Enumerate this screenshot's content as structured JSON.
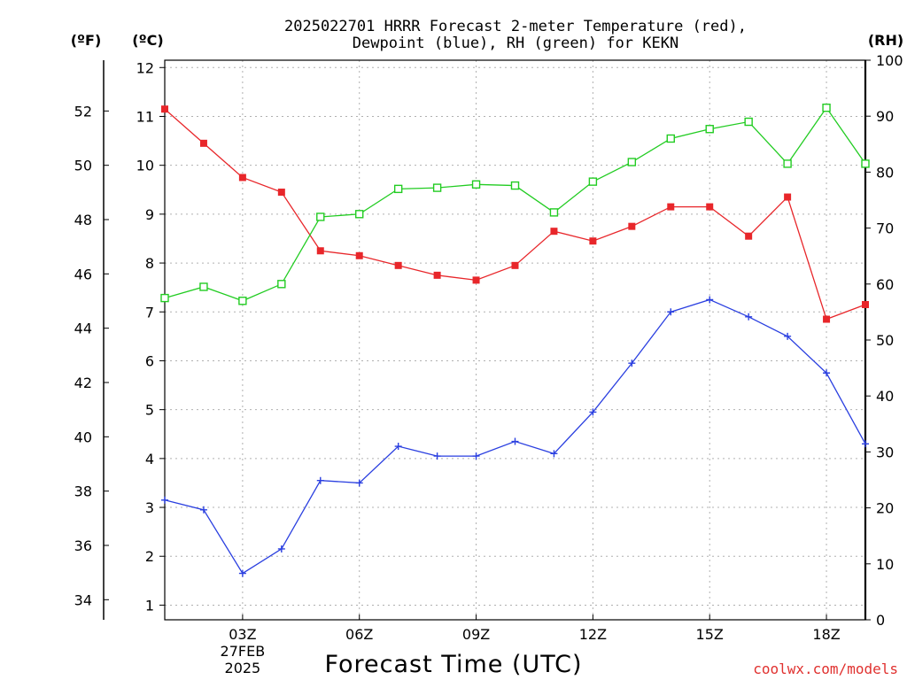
{
  "title": {
    "line1": "2025022701 HRRR Forecast 2-meter Temperature (red),",
    "line2": "Dewpoint (blue), RH (green) for KEKN"
  },
  "units": {
    "fahrenheit": "(ºF)",
    "celsius": "(ºC)",
    "rh": "(RH)"
  },
  "credit": "coolwx.com/models",
  "colors": {
    "temperature": "#e8262a",
    "dewpoint": "#2a3fe0",
    "rh": "#22cc22",
    "credit": "#e0312f",
    "grid": "#b0b0b0"
  },
  "chart_data": {
    "type": "line",
    "xlabel": "Forecast Time (UTC)",
    "x": [
      1,
      2,
      3,
      4,
      5,
      6,
      7,
      8,
      9,
      10,
      11,
      12,
      13,
      14,
      15,
      16,
      17,
      18,
      19
    ],
    "xlim": [
      1,
      19
    ],
    "x_ticks": [
      {
        "x": 3,
        "label": "03Z",
        "sub": [
          "27FEB",
          "2025"
        ]
      },
      {
        "x": 6,
        "label": "06Z"
      },
      {
        "x": 9,
        "label": "09Z"
      },
      {
        "x": 12,
        "label": "12Z"
      },
      {
        "x": 15,
        "label": "15Z"
      },
      {
        "x": 18,
        "label": "18Z"
      }
    ],
    "y_celsius": {
      "lim": [
        0.7,
        12.15
      ],
      "ticks": [
        1,
        2,
        3,
        4,
        5,
        6,
        7,
        8,
        9,
        10,
        11,
        12
      ]
    },
    "y_fahrenheit": {
      "ticks": [
        34,
        36,
        38,
        40,
        42,
        44,
        46,
        48,
        50,
        52
      ]
    },
    "y_rh": {
      "lim": [
        0,
        100
      ],
      "ticks": [
        0,
        10,
        20,
        30,
        40,
        50,
        60,
        70,
        80,
        90,
        100
      ]
    },
    "grid": true,
    "series": [
      {
        "name": "Temperature",
        "axis": "celsius",
        "color_key": "temperature",
        "marker": "filled-square",
        "values": [
          11.15,
          10.45,
          9.75,
          9.45,
          8.25,
          8.15,
          7.95,
          7.75,
          7.65,
          7.95,
          8.65,
          8.45,
          8.75,
          9.15,
          9.15,
          8.55,
          9.35,
          6.85,
          7.15
        ]
      },
      {
        "name": "Dewpoint",
        "axis": "celsius",
        "color_key": "dewpoint",
        "marker": "plus",
        "values": [
          3.15,
          2.95,
          1.65,
          2.15,
          3.55,
          3.5,
          4.25,
          4.05,
          4.05,
          4.35,
          4.1,
          4.95,
          5.95,
          7.0,
          7.25,
          6.9,
          6.5,
          5.75,
          4.3
        ]
      },
      {
        "name": "RH",
        "axis": "rh",
        "color_key": "rh",
        "marker": "open-square",
        "values": [
          57.5,
          59.5,
          57,
          60,
          72,
          72.5,
          77,
          77.2,
          77.8,
          77.6,
          72.8,
          78.3,
          81.8,
          86,
          87.7,
          89,
          81.5,
          91.5,
          81.5
        ]
      }
    ]
  }
}
